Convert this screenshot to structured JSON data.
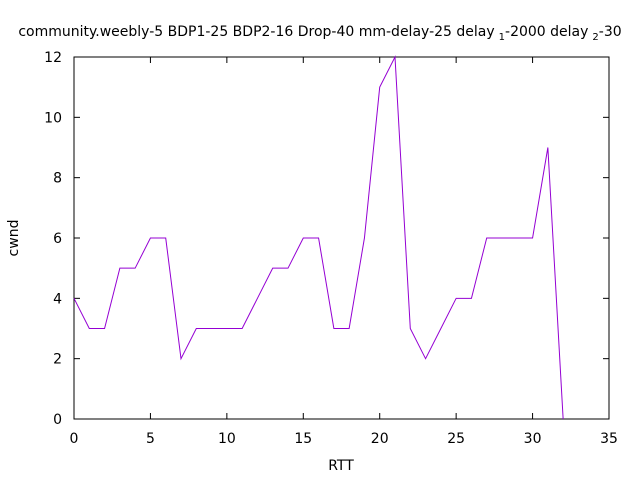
{
  "chart_data": {
    "type": "line",
    "title_parts": {
      "main": "community.weebly-5 BDP1-25 BDP2-16 Drop-40 mm-delay-25 delay",
      "sub1": "1",
      "mid": "-2000 delay",
      "sub2": "2",
      "tail": "-30"
    },
    "xlabel": "RTT",
    "ylabel": "cwnd",
    "xlim": [
      0,
      35
    ],
    "ylim": [
      0,
      12
    ],
    "xticks": [
      0,
      5,
      10,
      15,
      20,
      25,
      30,
      35
    ],
    "yticks": [
      0,
      2,
      4,
      6,
      8,
      10,
      12
    ],
    "grid": false,
    "series": [
      {
        "color": "#9400d3",
        "x": [
          0,
          1,
          2,
          3,
          4,
          5,
          6,
          7,
          8,
          9,
          10,
          11,
          12,
          13,
          14,
          15,
          16,
          17,
          18,
          19,
          20,
          21,
          22,
          23,
          24,
          25,
          26,
          27,
          28,
          29,
          30,
          31,
          32
        ],
        "y": [
          4,
          3,
          3,
          5,
          5,
          6,
          6,
          2,
          3,
          3,
          3,
          3,
          4,
          5,
          5,
          6,
          6,
          3,
          3,
          6,
          11,
          12,
          3,
          2,
          3,
          4,
          4,
          6,
          6,
          6,
          6,
          9,
          0
        ]
      }
    ]
  }
}
